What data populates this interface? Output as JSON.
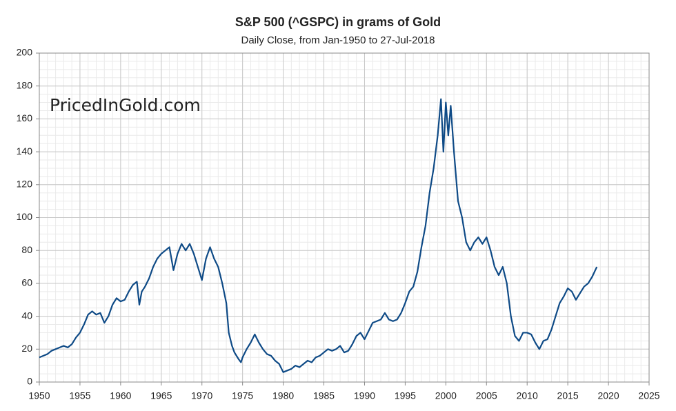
{
  "chart_data": {
    "type": "line",
    "title": "S&P 500 (^GSPC) in grams of Gold",
    "subtitle": "Daily Close, from Jan-1950 to 27-Jul-2018",
    "watermark": "PricedInGold.com",
    "x": [
      1950.0,
      1950.5,
      1951,
      1951.5,
      1952,
      1952.5,
      1953,
      1953.5,
      1954,
      1954.5,
      1955,
      1955.5,
      1956,
      1956.5,
      1957,
      1957.5,
      1958,
      1958.5,
      1959,
      1959.5,
      1960,
      1960.5,
      1961,
      1961.5,
      1962,
      1962.3,
      1962.6,
      1963,
      1963.5,
      1964,
      1964.5,
      1965,
      1965.5,
      1966,
      1966.5,
      1967,
      1967.5,
      1968,
      1968.5,
      1969,
      1969.5,
      1970,
      1970.5,
      1971,
      1971.5,
      1972,
      1972.5,
      1973,
      1973.3,
      1973.7,
      1974,
      1974.5,
      1974.8,
      1975,
      1975.5,
      1976,
      1976.5,
      1977,
      1977.5,
      1978,
      1978.5,
      1979,
      1979.5,
      1980,
      1980.5,
      1981,
      1981.5,
      1982,
      1982.5,
      1983,
      1983.5,
      1984,
      1984.5,
      1985,
      1985.5,
      1986,
      1986.5,
      1987,
      1987.5,
      1988,
      1988.5,
      1989,
      1989.5,
      1990,
      1990.5,
      1991,
      1991.5,
      1992,
      1992.5,
      1993,
      1993.5,
      1994,
      1994.5,
      1995,
      1995.5,
      1996,
      1996.5,
      1997,
      1997.5,
      1998,
      1998.5,
      1999,
      1999.4,
      1999.7,
      2000,
      2000.3,
      2000.6,
      2001,
      2001.5,
      2002,
      2002.5,
      2003,
      2003.5,
      2004,
      2004.5,
      2005,
      2005.5,
      2006,
      2006.5,
      2007,
      2007.5,
      2008,
      2008.5,
      2009,
      2009.5,
      2010,
      2010.5,
      2011,
      2011.5,
      2012,
      2012.5,
      2013,
      2013.5,
      2014,
      2014.5,
      2015,
      2015.5,
      2016,
      2016.5,
      2017,
      2017.5,
      2018,
      2018.57
    ],
    "series": [
      {
        "color": "#0e4a86",
        "values": [
          15,
          16,
          17,
          19,
          20,
          21,
          22,
          21,
          23,
          27,
          30,
          35,
          41,
          43,
          41,
          42,
          36,
          40,
          47,
          51,
          49,
          50,
          55,
          59,
          61,
          47,
          55,
          58,
          63,
          70,
          75,
          78,
          80,
          82,
          68,
          78,
          84,
          80,
          84,
          78,
          70,
          62,
          75,
          82,
          75,
          70,
          60,
          48,
          30,
          22,
          18,
          14,
          12,
          15,
          20,
          24,
          29,
          24,
          20,
          17,
          16,
          13,
          11,
          6,
          7,
          8,
          10,
          9,
          11,
          13,
          12,
          15,
          16,
          18,
          20,
          19,
          20,
          22,
          18,
          19,
          23,
          28,
          30,
          26,
          31,
          36,
          37,
          38,
          42,
          38,
          37,
          38,
          42,
          48,
          55,
          58,
          67,
          82,
          95,
          115,
          130,
          150,
          172,
          140,
          170,
          150,
          168,
          140,
          110,
          100,
          85,
          80,
          85,
          88,
          84,
          88,
          80,
          70,
          65,
          70,
          60,
          40,
          28,
          25,
          30,
          30,
          29,
          24,
          20,
          25,
          26,
          32,
          40,
          48,
          52,
          57,
          55,
          50,
          54,
          58,
          60,
          64,
          70
        ]
      }
    ],
    "xlim": [
      1950,
      2025
    ],
    "xticks": [
      1950,
      1955,
      1960,
      1965,
      1970,
      1975,
      1980,
      1985,
      1990,
      1995,
      2000,
      2005,
      2010,
      2015,
      2020,
      2025
    ],
    "ylim": [
      0,
      200
    ],
    "yticks": [
      0,
      20,
      40,
      60,
      80,
      100,
      120,
      140,
      160,
      180,
      200
    ],
    "grid": true,
    "x_minor_step": 1,
    "y_minor_step": 5
  }
}
